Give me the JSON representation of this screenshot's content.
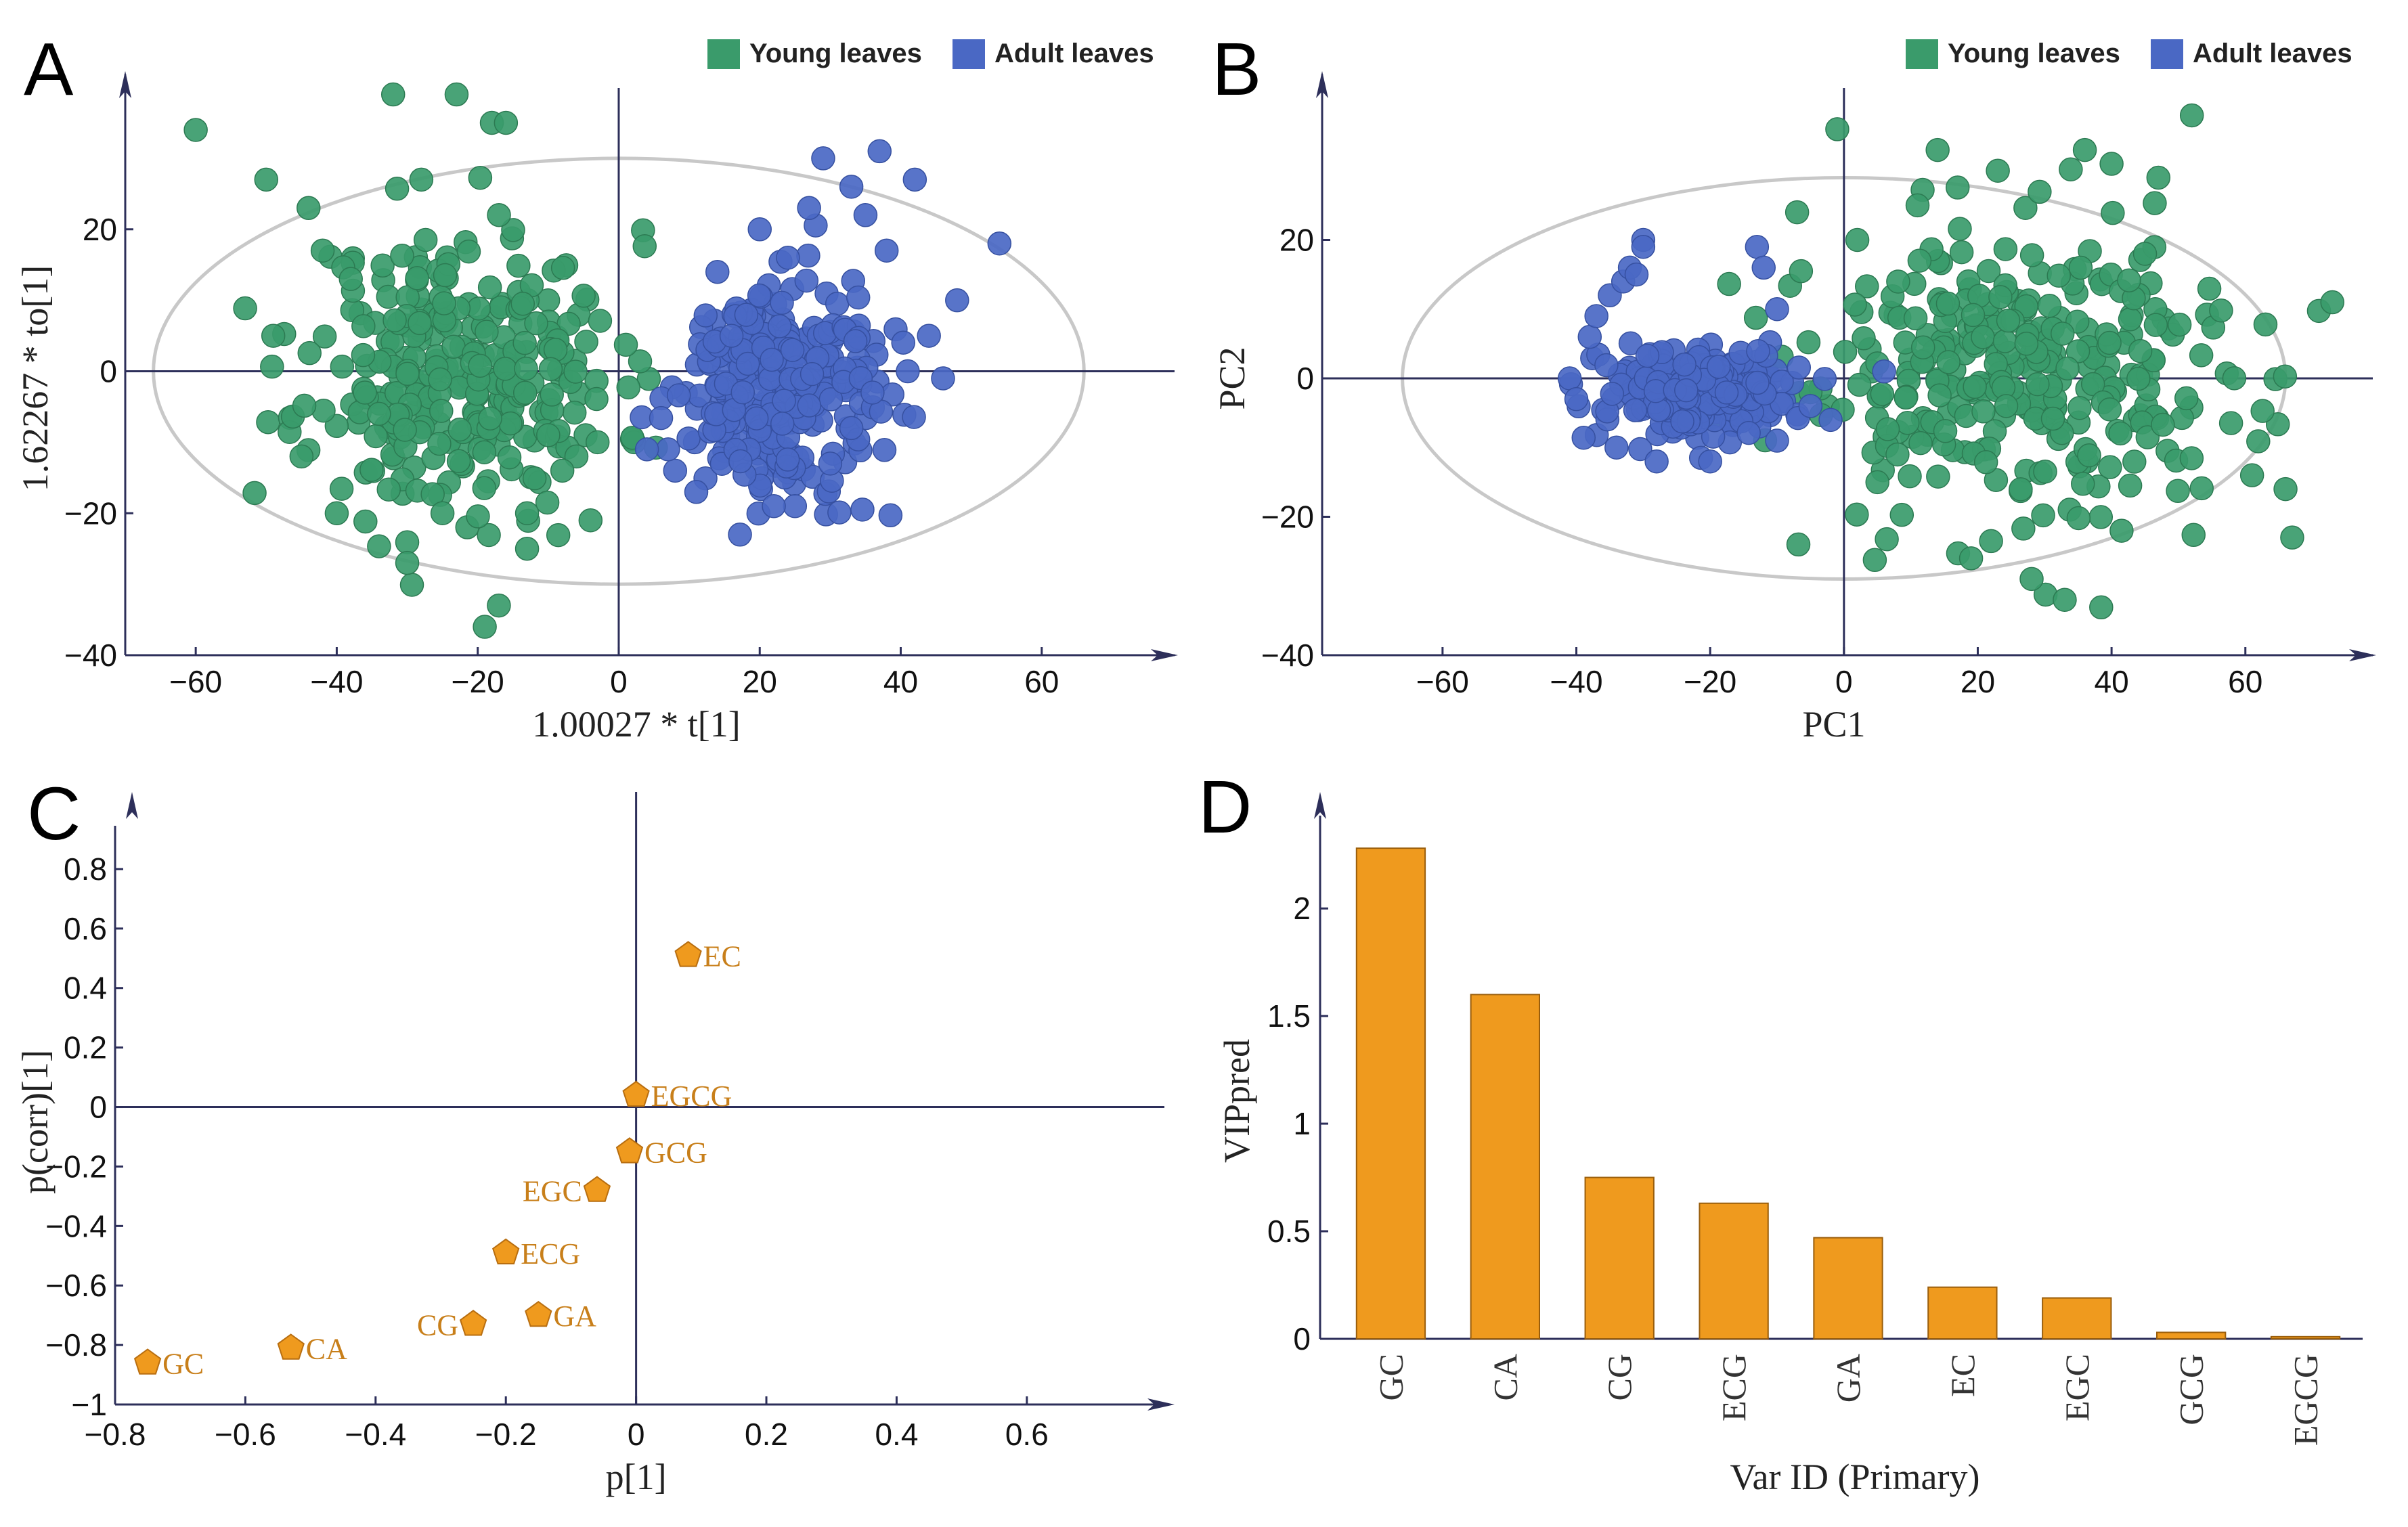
{
  "chart_data": [
    {
      "panel": "A",
      "type": "scatter",
      "title": "",
      "xlabel": "1.00027 * t[1]",
      "ylabel": "1.62267 * to[1]",
      "xlim": [
        -70,
        75
      ],
      "ylim": [
        -40,
        38
      ],
      "xticks": [
        -60,
        -40,
        -20,
        0,
        20,
        40,
        60
      ],
      "yticks": [
        20,
        0,
        -20,
        -40
      ],
      "ellipse": {
        "cx": 0,
        "cy": 0,
        "rx": 66,
        "ry": 30
      },
      "legend": [
        {
          "label": "Young leaves",
          "color": "#3a9b6b"
        },
        {
          "label": "Adult leaves",
          "color": "#4a68c4"
        }
      ],
      "series": [
        {
          "name": "Young leaves",
          "color": "#3a9b6b",
          "cluster": {
            "center": [
              -22,
              0
            ],
            "spread": [
              11,
              10
            ],
            "n": 300,
            "seed": 11
          },
          "points": [
            [
              -60,
              34
            ],
            [
              -32,
              39
            ],
            [
              -23,
              39
            ],
            [
              -18,
              35
            ],
            [
              -16,
              35
            ],
            [
              -50,
              27
            ],
            [
              -49,
              5
            ],
            [
              -45,
              -12
            ],
            [
              -40,
              -20
            ],
            [
              -30,
              -27
            ],
            [
              -19,
              -36
            ],
            [
              -13,
              -20
            ],
            [
              -4,
              -21
            ],
            [
              -44,
              23
            ],
            [
              -28,
              27
            ],
            [
              -34,
              -6
            ],
            [
              -3,
              -10
            ],
            [
              -6,
              -12
            ],
            [
              -10,
              -9
            ],
            [
              -8,
              -14
            ],
            [
              -13,
              -25
            ],
            [
              -17,
              -33
            ],
            [
              -38,
              13
            ],
            [
              -42,
              17
            ],
            [
              -25,
              -20
            ],
            [
              -36,
              -3
            ]
          ]
        },
        {
          "name": "Adult leaves",
          "color": "#4a68c4",
          "cluster": {
            "center": [
              22,
              -2
            ],
            "spread": [
              7,
              7
            ],
            "n": 300,
            "seed": 29
          },
          "points": [
            [
              29,
              30
            ],
            [
              37,
              31
            ],
            [
              42,
              27
            ],
            [
              54,
              18
            ],
            [
              48,
              10
            ],
            [
              44,
              5
            ],
            [
              41,
              0
            ],
            [
              36,
              -3
            ],
            [
              33,
              -8
            ],
            [
              30,
              -13
            ],
            [
              25,
              -19
            ],
            [
              22,
              -19
            ],
            [
              11,
              -17
            ],
            [
              8,
              -14
            ],
            [
              7,
              -11
            ],
            [
              4,
              -11
            ],
            [
              20,
              20
            ],
            [
              14,
              14
            ],
            [
              16,
              5
            ],
            [
              33,
              26
            ],
            [
              35,
              22
            ],
            [
              27,
              23
            ],
            [
              24,
              16
            ],
            [
              38,
              17
            ],
            [
              46,
              -1
            ]
          ]
        }
      ]
    },
    {
      "panel": "B",
      "type": "scatter",
      "title": "",
      "xlabel": "PC1",
      "ylabel": "PC2",
      "xlim": [
        -78,
        75
      ],
      "ylim": [
        -40,
        40
      ],
      "xticks": [
        -60,
        -40,
        -20,
        0,
        20,
        40,
        60
      ],
      "yticks": [
        20,
        0,
        -20,
        -40
      ],
      "ellipse": {
        "cx": 0,
        "cy": 0,
        "rx": 66,
        "ry": 29
      },
      "legend": [
        {
          "label": "Young leaves",
          "color": "#3a9b6b"
        },
        {
          "label": "Adult leaves",
          "color": "#4a68c4"
        }
      ],
      "series": [
        {
          "name": "Young leaves",
          "color": "#3a9b6b",
          "cluster": {
            "center": [
              28,
              0
            ],
            "spread": [
              18,
              11
            ],
            "n": 320,
            "seed": 53
          },
          "points": [
            [
              52,
              38
            ],
            [
              -1,
              36
            ],
            [
              73,
              11
            ],
            [
              66,
              -16
            ],
            [
              67,
              -23
            ],
            [
              33,
              -32
            ],
            [
              19,
              -26
            ],
            [
              -5,
              -2
            ],
            [
              5,
              -15
            ],
            [
              8,
              -11
            ],
            [
              14,
              33
            ],
            [
              36,
              33
            ],
            [
              61,
              -14
            ],
            [
              47,
              29
            ],
            [
              40,
              31
            ],
            [
              23,
              30
            ],
            [
              -7,
              24
            ],
            [
              2,
              20
            ],
            [
              11,
              25
            ],
            [
              45,
              18
            ]
          ]
        },
        {
          "name": "Adult leaves",
          "color": "#4a68c4",
          "cluster": {
            "center": [
              -22,
              -2
            ],
            "spread": [
              7,
              3
            ],
            "n": 300,
            "seed": 71
          },
          "points": [
            [
              -41,
              0
            ],
            [
              -38,
              6
            ],
            [
              -37,
              9
            ],
            [
              -35,
              12
            ],
            [
              -33,
              14
            ],
            [
              -32,
              16
            ],
            [
              -30,
              20
            ],
            [
              -30,
              19
            ],
            [
              -31,
              15
            ],
            [
              -13,
              19
            ],
            [
              -12,
              16
            ],
            [
              -10,
              10
            ],
            [
              -5,
              -4
            ],
            [
              -2,
              -6
            ],
            [
              6,
              1
            ],
            [
              -34,
              -10
            ],
            [
              -28,
              -12
            ],
            [
              -20,
              -12
            ],
            [
              -10,
              -9
            ],
            [
              -40,
              -3
            ]
          ]
        }
      ]
    },
    {
      "panel": "C",
      "type": "scatter",
      "title": "",
      "xlabel": "p[1]",
      "ylabel": "p(corr)[1]",
      "xlim": [
        -0.8,
        0.78
      ],
      "ylim": [
        -1.0,
        0.9
      ],
      "xticks": [
        -0.8,
        -0.6,
        -0.4,
        -0.2,
        0,
        0.2,
        0.4,
        0.6
      ],
      "xtick_labels": [
        "−0.8",
        "−0.6",
        "−0.4",
        "−0.2",
        "0",
        "0.2",
        "0.4",
        "0.6"
      ],
      "yticks": [
        0.8,
        0.6,
        0.4,
        0.2,
        0,
        -0.2,
        -0.4,
        -0.6,
        -0.8,
        -1
      ],
      "ytick_labels": [
        "0.8",
        "0.6",
        "0.4",
        "0.2",
        "0",
        "−0.2",
        "−0.4",
        "−0.6",
        "−0.8",
        "−1"
      ],
      "points": [
        {
          "label": "EC",
          "x": 0.08,
          "y": 0.51,
          "pos": "right"
        },
        {
          "label": "EGCG",
          "x": 0.0,
          "y": 0.04,
          "pos": "right"
        },
        {
          "label": "GCG",
          "x": -0.01,
          "y": -0.15,
          "pos": "right"
        },
        {
          "label": "EGC",
          "x": -0.06,
          "y": -0.28,
          "pos": "left"
        },
        {
          "label": "ECG",
          "x": -0.2,
          "y": -0.49,
          "pos": "right"
        },
        {
          "label": "GA",
          "x": -0.15,
          "y": -0.7,
          "pos": "right"
        },
        {
          "label": "CG",
          "x": -0.25,
          "y": -0.73,
          "pos": "left"
        },
        {
          "label": "CA",
          "x": -0.53,
          "y": -0.81,
          "pos": "right"
        },
        {
          "label": "GC",
          "x": -0.75,
          "y": -0.86,
          "pos": "right"
        }
      ],
      "color": "#ef9a1e"
    },
    {
      "panel": "D",
      "type": "bar",
      "title": "",
      "xlabel": "Var ID (Primary)",
      "ylabel": "VIPpred",
      "ylim": [
        0,
        2.4
      ],
      "yticks": [
        0,
        0.5,
        1,
        1.5,
        2
      ],
      "ytick_labels": [
        "0",
        "0.5",
        "1",
        "1.5",
        "2"
      ],
      "categories": [
        "GC",
        "CA",
        "CG",
        "ECG",
        "GA",
        "EC",
        "EGC",
        "GCG",
        "EGCG"
      ],
      "values": [
        2.28,
        1.6,
        0.75,
        0.63,
        0.47,
        0.24,
        0.19,
        0.03,
        0.01
      ],
      "color": "#ef9a1e"
    }
  ]
}
